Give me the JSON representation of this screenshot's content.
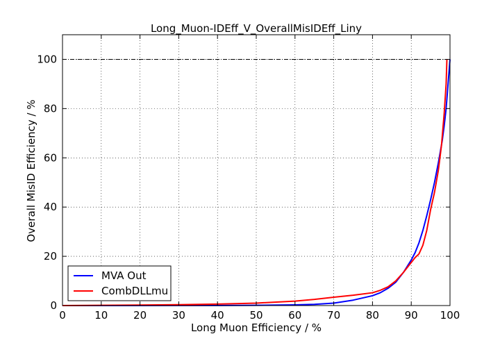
{
  "chart_data": {
    "type": "line",
    "title": "Long_Muon-IDEff_V_OverallMisIDEff_Liny",
    "xlabel": "Long Muon Efficiency / %",
    "ylabel": "Overall MisID Efficiency / %",
    "xlim": [
      0,
      100
    ],
    "ylim": [
      0,
      110
    ],
    "xticks": [
      "0",
      "10",
      "20",
      "30",
      "40",
      "50",
      "60",
      "70",
      "80",
      "90",
      "100"
    ],
    "yticks": [
      "0",
      "20",
      "40",
      "60",
      "80",
      "100"
    ],
    "grid": true,
    "legend_position": "lower-left",
    "reference_line": {
      "y": 100,
      "style": "dash-dot"
    },
    "series": [
      {
        "name": "MVA Out",
        "color": "#0000ff",
        "points": [
          [
            0,
            0
          ],
          [
            20,
            0
          ],
          [
            40,
            0.05
          ],
          [
            50,
            0.1
          ],
          [
            60,
            0.3
          ],
          [
            65,
            0.5
          ],
          [
            70,
            1.0
          ],
          [
            75,
            2.2
          ],
          [
            80,
            4.0
          ],
          [
            82,
            5.2
          ],
          [
            84,
            7.0
          ],
          [
            86,
            9.5
          ],
          [
            88,
            13.5
          ],
          [
            90,
            18.5
          ],
          [
            91,
            21.5
          ],
          [
            92,
            25.5
          ],
          [
            93,
            30.5
          ],
          [
            94,
            36.5
          ],
          [
            95,
            43
          ],
          [
            96,
            50
          ],
          [
            97,
            58
          ],
          [
            98,
            67
          ],
          [
            98.5,
            73
          ],
          [
            99,
            80
          ],
          [
            99.5,
            90
          ],
          [
            100,
            100
          ]
        ]
      },
      {
        "name": "CombDLLmu",
        "color": "#ff0000",
        "points": [
          [
            0,
            0
          ],
          [
            10,
            0.1
          ],
          [
            20,
            0.2
          ],
          [
            30,
            0.35
          ],
          [
            40,
            0.6
          ],
          [
            50,
            1.0
          ],
          [
            60,
            1.8
          ],
          [
            65,
            2.5
          ],
          [
            70,
            3.4
          ],
          [
            75,
            4.2
          ],
          [
            80,
            5.2
          ],
          [
            82,
            6.2
          ],
          [
            84,
            7.6
          ],
          [
            86,
            10
          ],
          [
            88,
            13.5
          ],
          [
            90,
            17.5
          ],
          [
            91,
            19.5
          ],
          [
            92,
            21
          ],
          [
            93,
            24.5
          ],
          [
            94,
            30.5
          ],
          [
            95,
            39
          ],
          [
            96,
            46
          ],
          [
            97,
            55
          ],
          [
            97.8,
            65
          ],
          [
            98.5,
            78
          ],
          [
            99,
            90
          ],
          [
            99.2,
            100
          ]
        ]
      }
    ]
  }
}
